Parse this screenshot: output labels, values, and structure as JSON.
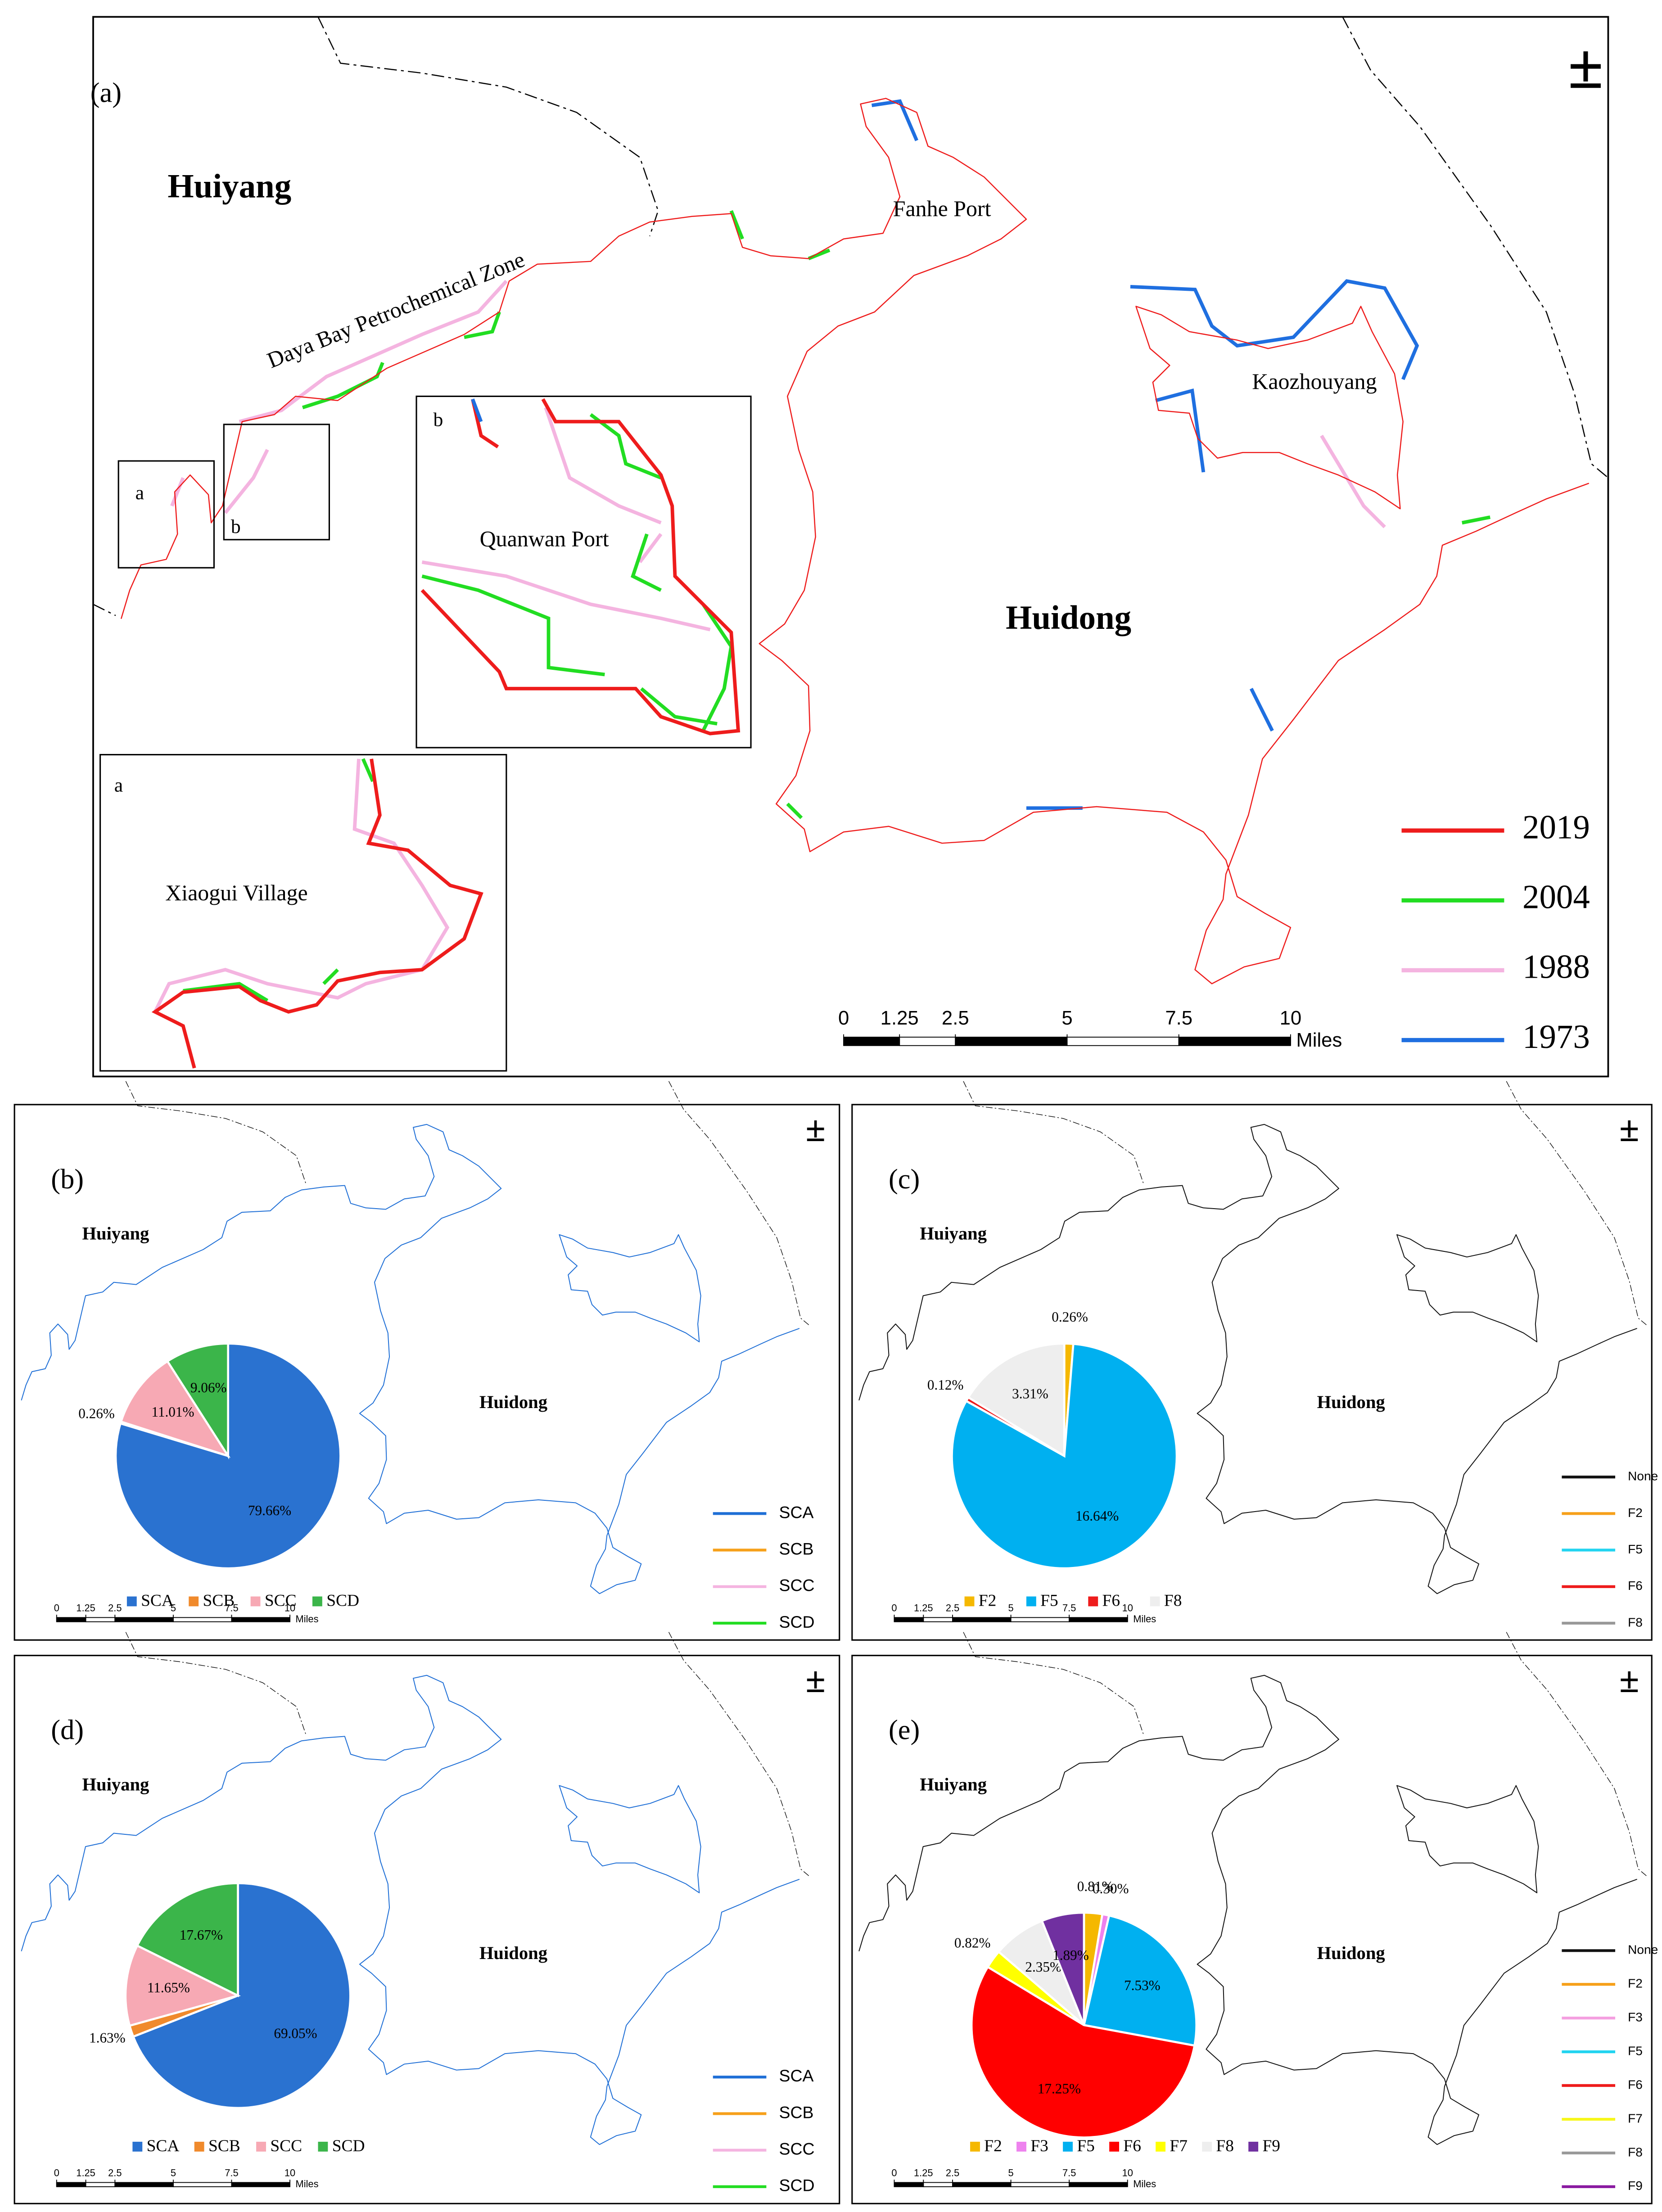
{
  "panel_a": {
    "label": "(a)",
    "north": "±",
    "places": {
      "huiyang": "Huiyang",
      "huidong": "Huidong",
      "fanhe": "Fanhe Port",
      "kaozhouyang": "Kaozhouyang",
      "daya": "Daya Bay Petrochemical Zone",
      "quanwan": "Quanwan Port",
      "xiaogui": "Xiaogui Village"
    },
    "inset_labels": [
      "a",
      "b"
    ],
    "legend": [
      {
        "name": "2019",
        "color": "#ee1c1c"
      },
      {
        "name": "2004",
        "color": "#22dd22"
      },
      {
        "name": "1988",
        "color": "#f4b4e0"
      },
      {
        "name": "1973",
        "color": "#1f6fe0"
      }
    ],
    "scale": {
      "ticks": [
        0,
        1.25,
        2.5,
        5,
        7.5,
        10
      ],
      "unit": "Miles"
    }
  },
  "panels": [
    {
      "label": "(b)",
      "north": "±",
      "places": [
        "Huiyang",
        "Huidong"
      ],
      "line_color": "#1f6fd6",
      "pie": {
        "categories": [
          "SCA",
          "SCB",
          "SCC",
          "SCD"
        ],
        "values": [
          79.66,
          0.26,
          11.01,
          9.06
        ],
        "value_labels": [
          "79.66%",
          "0.26%",
          "11.01%",
          "9.06%"
        ],
        "colors": [
          "#2a72d0",
          "#f08a2c",
          "#f7a9b4",
          "#3bb54a"
        ]
      },
      "legend": [
        {
          "name": "SCA",
          "color": "#1f6fd6"
        },
        {
          "name": "SCB",
          "color": "#f6a01a"
        },
        {
          "name": "SCC",
          "color": "#f4b4e0"
        },
        {
          "name": "SCD",
          "color": "#22dd22"
        }
      ],
      "scale": {
        "ticks": [
          0,
          1.25,
          2.5,
          5,
          7.5,
          10
        ],
        "unit": "Miles"
      }
    },
    {
      "label": "(c)",
      "north": "±",
      "places": [
        "Huiyang",
        "Huidong"
      ],
      "line_color": "#111111",
      "pie": {
        "categories": [
          "F2",
          "F5",
          "F6",
          "F8"
        ],
        "values": [
          0.26,
          16.64,
          0.12,
          3.31
        ],
        "value_labels": [
          "0.26%",
          "16.64%",
          "0.12%",
          "3.31%"
        ],
        "colors": [
          "#f5b800",
          "#00b0f0",
          "#ee1c1c",
          "#eeeeee"
        ]
      },
      "legend": [
        {
          "name": "None",
          "color": "#111111"
        },
        {
          "name": "F2",
          "color": "#f6a01a"
        },
        {
          "name": "F5",
          "color": "#22d4f0"
        },
        {
          "name": "F6",
          "color": "#ee1c1c"
        },
        {
          "name": "F8",
          "color": "#999999"
        }
      ],
      "scale": {
        "ticks": [
          0,
          1.25,
          2.5,
          5,
          7.5,
          10
        ],
        "unit": "Miles"
      }
    },
    {
      "label": "(d)",
      "north": "±",
      "places": [
        "Huiyang",
        "Huidong"
      ],
      "line_color": "#1f6fd6",
      "pie": {
        "categories": [
          "SCA",
          "SCB",
          "SCC",
          "SCD"
        ],
        "values": [
          69.05,
          1.63,
          11.65,
          17.67
        ],
        "value_labels": [
          "69.05%",
          "1.63%",
          "11.65%",
          "17.67%"
        ],
        "colors": [
          "#2a72d0",
          "#f08a2c",
          "#f7a9b4",
          "#3bb54a"
        ]
      },
      "legend": [
        {
          "name": "SCA",
          "color": "#1f6fd6"
        },
        {
          "name": "SCB",
          "color": "#f6a01a"
        },
        {
          "name": "SCC",
          "color": "#f4b4e0"
        },
        {
          "name": "SCD",
          "color": "#22dd22"
        }
      ],
      "scale": {
        "ticks": [
          0,
          1.25,
          2.5,
          5,
          7.5,
          10
        ],
        "unit": "Miles"
      }
    },
    {
      "label": "(e)",
      "north": "±",
      "places": [
        "Huiyang",
        "Huidong"
      ],
      "line_color": "#111111",
      "pie": {
        "categories": [
          "F2",
          "F3",
          "F5",
          "F6",
          "F7",
          "F8",
          "F9"
        ],
        "values": [
          0.81,
          0.3,
          7.53,
          17.25,
          0.82,
          2.35,
          1.89
        ],
        "value_labels": [
          "0.81%",
          "0.30%",
          "7.53%",
          "17.25%",
          "0.82%",
          "2.35%",
          "1.89%"
        ],
        "colors": [
          "#f5b800",
          "#ee82ee",
          "#00b0f0",
          "#ff0000",
          "#ffff00",
          "#eeeeee",
          "#7030a0"
        ]
      },
      "legend": [
        {
          "name": "None",
          "color": "#111111"
        },
        {
          "name": "F2",
          "color": "#f6a01a"
        },
        {
          "name": "F3",
          "color": "#f4a0e0"
        },
        {
          "name": "F5",
          "color": "#22d4f0"
        },
        {
          "name": "F6",
          "color": "#ee1c1c"
        },
        {
          "name": "F7",
          "color": "#f7f71a"
        },
        {
          "name": "F8",
          "color": "#999999"
        },
        {
          "name": "F9",
          "color": "#8a1aa0"
        }
      ],
      "scale": {
        "ticks": [
          0,
          1.25,
          2.5,
          5,
          7.5,
          10
        ],
        "unit": "Miles"
      }
    }
  ]
}
